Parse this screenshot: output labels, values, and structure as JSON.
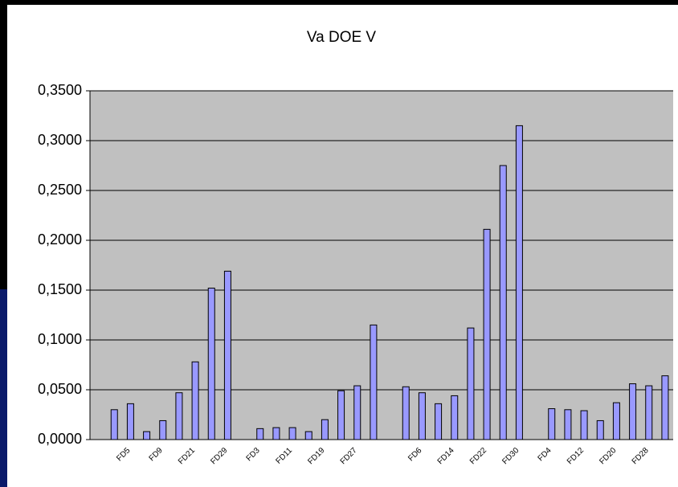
{
  "chart_data": {
    "type": "bar",
    "title": "Va DOE V",
    "categories": [
      null,
      null,
      "FD5",
      null,
      "FD9",
      null,
      "FD21",
      null,
      "FD29",
      null,
      "FD3",
      null,
      "FD11",
      null,
      "FD19",
      null,
      "FD27",
      null,
      null,
      null,
      "FD6",
      null,
      "FD14",
      null,
      "FD22",
      null,
      "FD30",
      null,
      "FD4",
      null,
      "FD12",
      null,
      "FD20",
      null,
      "FD28",
      null
    ],
    "values": [
      null,
      0.03,
      0.036,
      0.008,
      0.019,
      0.047,
      0.078,
      0.152,
      0.169,
      null,
      0.011,
      0.012,
      0.012,
      0.008,
      0.02,
      0.049,
      0.054,
      0.115,
      null,
      0.053,
      0.047,
      0.036,
      0.044,
      0.112,
      0.211,
      0.275,
      0.315,
      null,
      0.031,
      0.03,
      0.029,
      0.019,
      0.037,
      0.056,
      0.054,
      0.064
    ],
    "color": "#9999ff",
    "ylim": [
      0,
      0.35
    ],
    "yticks": [
      {
        "value": 0,
        "label": "0,0000"
      },
      {
        "value": 0.05,
        "label": "0,0500"
      },
      {
        "value": 0.1,
        "label": "0,1000"
      },
      {
        "value": 0.15,
        "label": "0,1500"
      },
      {
        "value": 0.2,
        "label": "0,2000"
      },
      {
        "value": 0.25,
        "label": "0,2500"
      },
      {
        "value": 0.3,
        "label": "0,3000"
      },
      {
        "value": 0.35,
        "label": "0,3500"
      }
    ],
    "grid": true
  }
}
